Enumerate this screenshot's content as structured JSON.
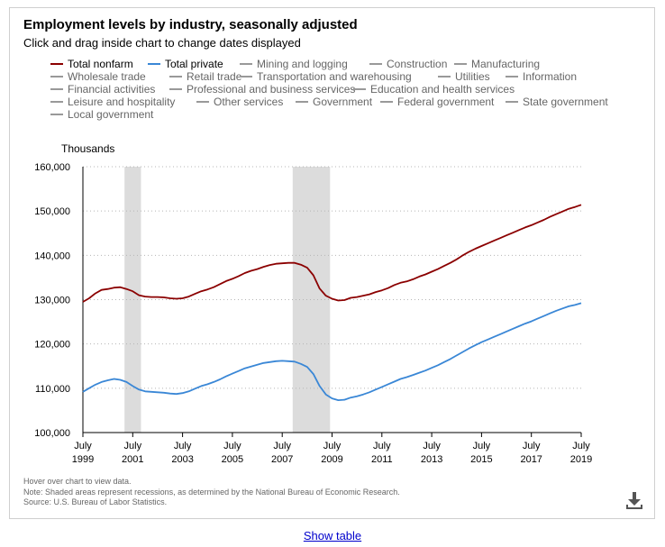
{
  "title": "Employment levels by industry, seasonally adjusted",
  "subtitle": "Click and drag inside chart to change dates displayed",
  "legend": [
    {
      "label": "Total nonfarm",
      "color": "#8b0000",
      "active": true
    },
    {
      "label": "Total private",
      "color": "#3a87d6",
      "active": true
    },
    {
      "label": "Mining and logging",
      "color": "#999999",
      "active": false
    },
    {
      "label": "Construction",
      "color": "#999999",
      "active": false
    },
    {
      "label": "Manufacturing",
      "color": "#999999",
      "active": false
    },
    {
      "label": "Wholesale trade",
      "color": "#999999",
      "active": false
    },
    {
      "label": "Retail trade",
      "color": "#999999",
      "active": false
    },
    {
      "label": "Transportation and warehousing",
      "color": "#999999",
      "active": false
    },
    {
      "label": "Utilities",
      "color": "#999999",
      "active": false
    },
    {
      "label": "Information",
      "color": "#999999",
      "active": false
    },
    {
      "label": "Financial activities",
      "color": "#999999",
      "active": false
    },
    {
      "label": "Professional and business services",
      "color": "#999999",
      "active": false
    },
    {
      "label": "Education and health services",
      "color": "#999999",
      "active": false
    },
    {
      "label": "Leisure and hospitality",
      "color": "#999999",
      "active": false
    },
    {
      "label": "Other services",
      "color": "#999999",
      "active": false
    },
    {
      "label": "Government",
      "color": "#999999",
      "active": false
    },
    {
      "label": "Federal government",
      "color": "#999999",
      "active": false
    },
    {
      "label": "State government",
      "color": "#999999",
      "active": false
    },
    {
      "label": "Local government",
      "color": "#999999",
      "active": false
    }
  ],
  "notes": {
    "hover": "Hover over chart to view data.",
    "note": "Note: Shaded areas represent recessions, as determined by the National Bureau of Economic Research.",
    "source": "Source: U.S. Bureau of Labor Statistics."
  },
  "download_icon": "download-icon",
  "show_table_label": "Show table",
  "chart_data": {
    "type": "line",
    "ylabel": "Thousands",
    "ylim": [
      100000,
      160000
    ],
    "xlim": [
      1999.5,
      2019.5
    ],
    "y_ticks": [
      "100,000",
      "110,000",
      "120,000",
      "130,000",
      "140,000",
      "150,000",
      "160,000"
    ],
    "y_tick_values": [
      100000,
      110000,
      120000,
      130000,
      140000,
      150000,
      160000
    ],
    "x_ticks": [
      {
        "value": 1999.5,
        "month": "July",
        "year": "1999"
      },
      {
        "value": 2001.5,
        "month": "July",
        "year": "2001"
      },
      {
        "value": 2003.5,
        "month": "July",
        "year": "2003"
      },
      {
        "value": 2005.5,
        "month": "July",
        "year": "2005"
      },
      {
        "value": 2007.5,
        "month": "July",
        "year": "2007"
      },
      {
        "value": 2009.5,
        "month": "July",
        "year": "2009"
      },
      {
        "value": 2011.5,
        "month": "July",
        "year": "2011"
      },
      {
        "value": 2013.5,
        "month": "July",
        "year": "2013"
      },
      {
        "value": 2015.5,
        "month": "July",
        "year": "2015"
      },
      {
        "value": 2017.5,
        "month": "July",
        "year": "2017"
      },
      {
        "value": 2019.5,
        "month": "July",
        "year": "2019"
      }
    ],
    "recessions": [
      [
        2001.17,
        2001.83
      ],
      [
        2007.92,
        2009.42
      ]
    ],
    "grid": true,
    "series": [
      {
        "name": "Total nonfarm",
        "color": "#8b0000",
        "x": [
          1999.5,
          1999.75,
          2000.0,
          2000.25,
          2000.5,
          2000.75,
          2001.0,
          2001.25,
          2001.5,
          2001.75,
          2002.0,
          2002.25,
          2002.5,
          2002.75,
          2003.0,
          2003.25,
          2003.5,
          2003.75,
          2004.0,
          2004.25,
          2004.5,
          2004.75,
          2005.0,
          2005.25,
          2005.5,
          2005.75,
          2006.0,
          2006.25,
          2006.5,
          2006.75,
          2007.0,
          2007.25,
          2007.5,
          2007.75,
          2008.0,
          2008.25,
          2008.5,
          2008.75,
          2009.0,
          2009.25,
          2009.5,
          2009.75,
          2010.0,
          2010.25,
          2010.5,
          2010.75,
          2011.0,
          2011.25,
          2011.5,
          2011.75,
          2012.0,
          2012.25,
          2012.5,
          2012.75,
          2013.0,
          2013.25,
          2013.5,
          2013.75,
          2014.0,
          2014.25,
          2014.5,
          2014.75,
          2015.0,
          2015.25,
          2015.5,
          2015.75,
          2016.0,
          2016.25,
          2016.5,
          2016.75,
          2017.0,
          2017.25,
          2017.5,
          2017.75,
          2018.0,
          2018.25,
          2018.5,
          2018.75,
          2019.0,
          2019.25,
          2019.5
        ],
        "values": [
          129500,
          130300,
          131400,
          132200,
          132400,
          132700,
          132800,
          132400,
          131900,
          131000,
          130700,
          130600,
          130600,
          130500,
          130300,
          130200,
          130300,
          130700,
          131300,
          131900,
          132300,
          132800,
          133500,
          134200,
          134700,
          135300,
          136000,
          136500,
          136900,
          137400,
          137800,
          138100,
          138200,
          138300,
          138300,
          137900,
          137200,
          135500,
          132500,
          130900,
          130200,
          129800,
          129900,
          130400,
          130600,
          130900,
          131200,
          131700,
          132100,
          132600,
          133300,
          133800,
          134100,
          134600,
          135200,
          135700,
          136300,
          136900,
          137600,
          138300,
          139100,
          140000,
          140800,
          141500,
          142100,
          142700,
          143300,
          143900,
          144500,
          145100,
          145700,
          146300,
          146800,
          147400,
          148000,
          148700,
          149300,
          149900,
          150500,
          150900,
          151400
        ]
      },
      {
        "name": "Total private",
        "color": "#3a87d6",
        "x": [
          1999.5,
          1999.75,
          2000.0,
          2000.25,
          2000.5,
          2000.75,
          2001.0,
          2001.25,
          2001.5,
          2001.75,
          2002.0,
          2002.25,
          2002.5,
          2002.75,
          2003.0,
          2003.25,
          2003.5,
          2003.75,
          2004.0,
          2004.25,
          2004.5,
          2004.75,
          2005.0,
          2005.25,
          2005.5,
          2005.75,
          2006.0,
          2006.25,
          2006.5,
          2006.75,
          2007.0,
          2007.25,
          2007.5,
          2007.75,
          2008.0,
          2008.25,
          2008.5,
          2008.75,
          2009.0,
          2009.25,
          2009.5,
          2009.75,
          2010.0,
          2010.25,
          2010.5,
          2010.75,
          2011.0,
          2011.25,
          2011.5,
          2011.75,
          2012.0,
          2012.25,
          2012.5,
          2012.75,
          2013.0,
          2013.25,
          2013.5,
          2013.75,
          2014.0,
          2014.25,
          2014.5,
          2014.75,
          2015.0,
          2015.25,
          2015.5,
          2015.75,
          2016.0,
          2016.25,
          2016.5,
          2016.75,
          2017.0,
          2017.25,
          2017.5,
          2017.75,
          2018.0,
          2018.25,
          2018.5,
          2018.75,
          2019.0,
          2019.25,
          2019.5
        ],
        "values": [
          109200,
          110000,
          110800,
          111400,
          111800,
          112100,
          111900,
          111400,
          110500,
          109700,
          109300,
          109200,
          109100,
          109000,
          108800,
          108700,
          108900,
          109300,
          109900,
          110500,
          110900,
          111400,
          112000,
          112700,
          113300,
          113900,
          114500,
          114900,
          115300,
          115700,
          115900,
          116100,
          116200,
          116100,
          116000,
          115500,
          114800,
          113200,
          110500,
          108600,
          107700,
          107300,
          107400,
          107900,
          108200,
          108600,
          109100,
          109700,
          110300,
          110900,
          111500,
          112100,
          112500,
          113000,
          113500,
          114000,
          114600,
          115200,
          115900,
          116600,
          117400,
          118200,
          119000,
          119700,
          120400,
          121000,
          121600,
          122200,
          122800,
          123400,
          124000,
          124600,
          125100,
          125700,
          126300,
          126900,
          127500,
          128000,
          128500,
          128800,
          129200
        ]
      }
    ]
  }
}
